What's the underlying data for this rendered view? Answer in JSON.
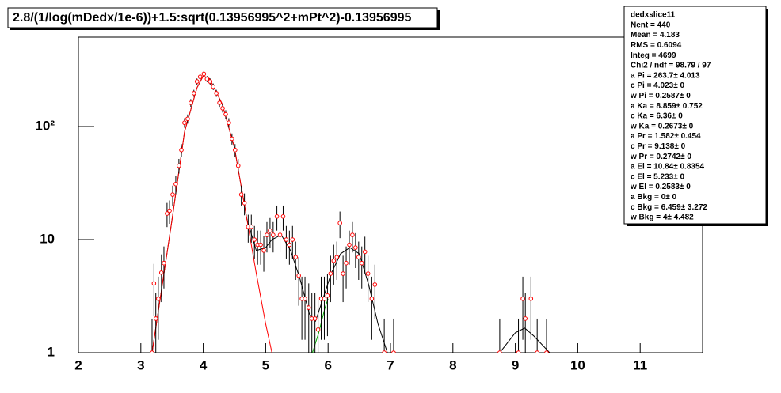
{
  "chart_data": {
    "type": "scatter",
    "title": "2.8/(1/log(mDedx/1e-6))+1.5:sqrt(0.13956995^2+mPt^2)-0.13956995",
    "xlim": [
      2,
      12
    ],
    "ylim": [
      1,
      617
    ],
    "log_y": true,
    "xticks": [
      2,
      3,
      4,
      5,
      6,
      7,
      8,
      9,
      10,
      11
    ],
    "yticks": [
      1,
      10,
      {
        "value": 100,
        "label": "10²"
      }
    ],
    "series": [
      {
        "color": "#ff0000",
        "x": [
          3.18,
          3.21,
          3.24,
          3.28,
          3.33,
          3.37,
          3.42,
          3.46,
          3.51,
          3.56,
          3.61,
          3.65,
          3.7,
          3.75,
          3.8,
          3.85,
          3.9,
          3.95,
          4.01,
          4.06,
          4.11,
          4.16,
          4.21,
          4.26,
          4.31,
          4.36,
          4.41,
          4.46,
          4.51,
          4.56,
          4.61,
          4.66,
          4.72,
          4.77,
          4.82,
          4.87,
          4.92,
          4.97,
          5.02,
          5.07,
          5.12,
          5.18,
          5.23,
          5.28,
          5.33,
          5.38,
          5.43,
          5.48,
          5.53,
          5.58,
          5.63,
          5.69,
          5.74,
          5.79,
          5.84,
          5.89,
          5.94,
          5.99,
          6.04,
          6.09,
          6.14,
          6.19,
          6.24,
          6.29,
          6.34,
          6.39,
          6.44,
          6.49,
          6.54,
          6.59,
          6.64,
          6.7,
          6.75,
          6.9,
          7.05,
          8.75,
          9.05,
          9.12,
          9.16,
          9.25,
          9.35,
          9.5
        ],
        "values": [
          1,
          4.1,
          2,
          3,
          5.1,
          6.2,
          17,
          18,
          25,
          31,
          45,
          62,
          108,
          117,
          162,
          197,
          250,
          275,
          292,
          263,
          250,
          225,
          197,
          162,
          145,
          128,
          108,
          78,
          62,
          45,
          25,
          21,
          13,
          13,
          10,
          9,
          9,
          8,
          11,
          12,
          11,
          16,
          11,
          16,
          10,
          9,
          10,
          7,
          4.8,
          3,
          3,
          2.5,
          2,
          2,
          1.6,
          3,
          3,
          3.2,
          5,
          6.5,
          7,
          14,
          5,
          6.2,
          9,
          11,
          8.5,
          7,
          6.2,
          7.8,
          5,
          3,
          4,
          1,
          1,
          1,
          1,
          3,
          2,
          3,
          1,
          1
        ],
        "errors": [
          1,
          2,
          1.4,
          1.7,
          2.3,
          2.5,
          4.1,
          4.2,
          5,
          5.6,
          6.7,
          7.9,
          10.4,
          10.8,
          12.7,
          14,
          15.8,
          16.6,
          17.1,
          16.2,
          15.8,
          15,
          14,
          12.7,
          12,
          11.3,
          10.4,
          8.8,
          7.9,
          6.7,
          5,
          4.6,
          3.6,
          3.6,
          3.2,
          3,
          3,
          2.8,
          3.3,
          3.5,
          3.3,
          4,
          3.3,
          4,
          3.2,
          3,
          3.2,
          2.6,
          2.2,
          1.7,
          1.7,
          1.6,
          1.4,
          1.4,
          1.3,
          1.7,
          1.7,
          1.8,
          2.2,
          2.5,
          2.6,
          3.7,
          2.2,
          2.5,
          3,
          3.3,
          2.9,
          2.6,
          2.5,
          2.8,
          2.2,
          1.7,
          2,
          1,
          1,
          1,
          1,
          1.7,
          1.4,
          1.7,
          1,
          1
        ]
      }
    ],
    "fits": [
      {
        "color": "#000000",
        "x": [
          3.18,
          3.5,
          3.7,
          3.9,
          4.0,
          4.1,
          4.3,
          4.5,
          4.7,
          4.85,
          5.0,
          5.1,
          5.25,
          5.4,
          5.55,
          5.7,
          5.8,
          5.9,
          6.05,
          6.2,
          6.35,
          6.5,
          6.65,
          6.8,
          6.95,
          null,
          8.75,
          9.0,
          9.15,
          9.3,
          9.55
        ],
        "values": [
          1,
          15,
          90,
          220,
          280,
          265,
          160,
          65,
          15,
          8,
          8.5,
          10,
          11,
          8,
          4.5,
          2.2,
          1.9,
          2.8,
          5,
          7.5,
          8.5,
          7.5,
          4,
          1.8,
          1,
          null,
          1,
          1.5,
          1.65,
          1.4,
          1
        ]
      },
      {
        "color": "#ff0000",
        "x": [
          3.18,
          3.5,
          3.7,
          3.9,
          4.0,
          4.1,
          4.3,
          4.5,
          4.7,
          4.85,
          5.0,
          5.1
        ],
        "values": [
          1,
          15,
          90,
          220,
          280,
          265,
          160,
          65,
          15,
          5,
          1.8,
          1
        ]
      },
      {
        "color": "#00aa00",
        "x": [
          5.75,
          5.85,
          5.95,
          6.0
        ],
        "values": [
          1,
          1.5,
          2.5,
          3
        ]
      }
    ],
    "stats": [
      "dedxslice11",
      "Nent = 440",
      "Mean  =  4.183",
      "RMS  = 0.6094",
      "Integ =   4699",
      "Chi2 / ndf = 98.79 / 97",
      "a Pi     = 263.7± 4.013",
      "c Pi    = 4.023±     0",
      "w Pi     = 0.2587±     0",
      "a Ka     = 8.859± 0.752",
      "c Ka     =   6.36±     0",
      "w Ka     = 0.2673±     0",
      "a Pr     = 1.582± 0.454",
      "c Pr     = 9.138±     0",
      "w Pr     = 0.2742±     0",
      "a El     = 10.84± 0.8354",
      "c El     = 5.233±     0",
      "w El     = 0.2583±     0",
      "a Bkg     =     0±     0",
      "c Bkg     = 6.459± 3.272",
      "w Bkg     =     4± 4.482"
    ]
  }
}
